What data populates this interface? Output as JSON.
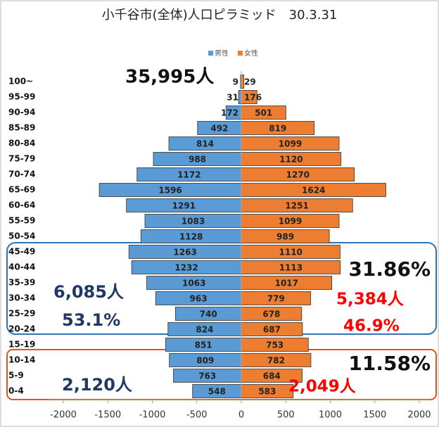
{
  "chart_data": {
    "type": "pyramid",
    "title": "小千谷市(全体)人口ピラミッド　30.3.31",
    "categories": [
      "100~",
      "95-99",
      "90-94",
      "85-89",
      "80-84",
      "75-79",
      "70-74",
      "65-69",
      "60-64",
      "55-59",
      "50-54",
      "45-49",
      "40-44",
      "35-39",
      "30-34",
      "25-29",
      "20-24",
      "15-19",
      "10-14",
      "5-9",
      "0-4"
    ],
    "series": [
      {
        "name": "男性",
        "color": "#5b9bd5",
        "side": "left",
        "values": [
          9,
          31,
          172,
          492,
          814,
          988,
          1172,
          1596,
          1291,
          1083,
          1128,
          1263,
          1232,
          1063,
          963,
          740,
          824,
          851,
          809,
          763,
          548
        ]
      },
      {
        "name": "女性",
        "color": "#ed7d31",
        "side": "right",
        "values": [
          29,
          176,
          501,
          819,
          1099,
          1120,
          1270,
          1624,
          1251,
          1099,
          989,
          1110,
          1113,
          1017,
          779,
          678,
          687,
          753,
          782,
          684,
          583
        ]
      }
    ],
    "xlim": [
      -2000,
      2000
    ],
    "xticks": [
      -2000,
      -1500,
      -1000,
      -500,
      0,
      500,
      1000,
      1500,
      2000
    ],
    "legend": "top",
    "annotations": [
      {
        "text": "35,995人",
        "color": "#111111"
      },
      {
        "text": "31.86%",
        "color": "#111111"
      },
      {
        "text": "6,085人",
        "color": "#1f3864"
      },
      {
        "text": "53.1%",
        "color": "#1f3864"
      },
      {
        "text": "5,384人",
        "color": "#ff0000"
      },
      {
        "text": "46.9%",
        "color": "#ff0000"
      },
      {
        "text": "11.58%",
        "color": "#111111"
      },
      {
        "text": "2,120人",
        "color": "#1f3864"
      },
      {
        "text": "2,049人",
        "color": "#ff0000"
      }
    ]
  }
}
